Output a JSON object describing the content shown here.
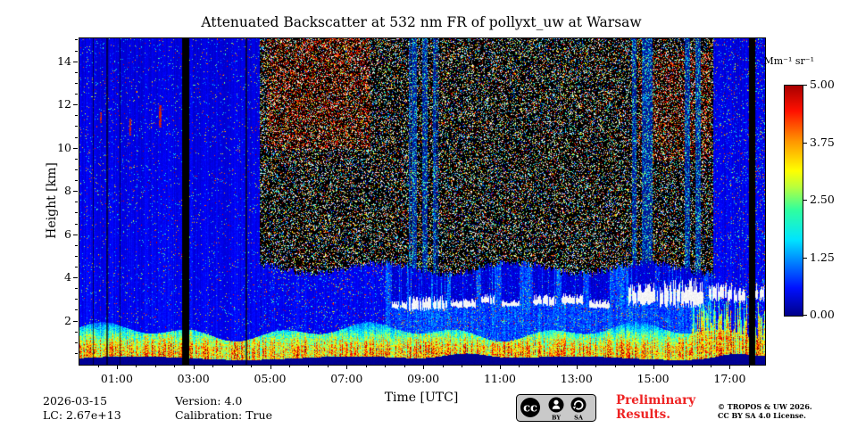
{
  "chart_data": {
    "type": "heatmap",
    "title": "Attenuated Backscatter at 532 nm FR of pollyxt_uw at Warsaw",
    "xlabel": "Time [UTC]",
    "ylabel": "Height [km]",
    "colorbar_label": "Mm⁻¹ sr⁻¹",
    "colormap": "jet",
    "value_range": [
      0,
      5
    ],
    "colorbar_ticks": [
      "5.00",
      "3.75",
      "2.50",
      "1.25",
      "0.00"
    ],
    "x_ticks": [
      "01:00",
      "03:00",
      "05:00",
      "07:00",
      "09:00",
      "11:00",
      "13:00",
      "15:00",
      "17:00"
    ],
    "x_tick_hours": [
      1,
      3,
      5,
      7,
      9,
      11,
      13,
      15,
      17
    ],
    "y_ticks": [
      "2",
      "4",
      "6",
      "8",
      "10",
      "12",
      "14"
    ],
    "y_tick_km": [
      2,
      4,
      6,
      8,
      10,
      12,
      14
    ],
    "x_range_hours": [
      0,
      17.9
    ],
    "y_range_km": [
      0,
      15.1
    ],
    "features": {
      "gaps": [
        [
          2.68,
          2.85
        ],
        [
          17.5,
          17.66
        ]
      ],
      "dark_columns": [
        0.35,
        0.72,
        1.05,
        4.35
      ],
      "red_dashes": [
        [
          1.32,
          10.6,
          11.4
        ],
        [
          2.1,
          11.0,
          12.0
        ],
        [
          0.55,
          11.2,
          11.7
        ]
      ],
      "solar_noise_region": {
        "t": [
          4.7,
          16.55
        ],
        "h_floor": 4.45
      },
      "turbid_field": {
        "t": [
          8.0,
          16.55
        ]
      },
      "red_haze": [
        [
          4.9,
          7.6,
          10.0,
          15.1,
          0.18
        ],
        [
          14.6,
          16.5,
          9.5,
          14.5,
          0.15
        ]
      ],
      "clouds": [
        [
          8.15,
          8.55,
          2.55,
          2.95
        ],
        [
          8.6,
          9.6,
          2.45,
          3.2
        ],
        [
          9.7,
          10.35,
          2.6,
          3.05
        ],
        [
          10.5,
          10.85,
          2.75,
          3.3
        ],
        [
          11.0,
          11.5,
          2.65,
          3.0
        ],
        [
          11.85,
          12.45,
          2.7,
          3.25
        ],
        [
          12.6,
          13.15,
          2.75,
          3.3
        ],
        [
          13.3,
          13.85,
          2.55,
          3.0
        ],
        [
          14.35,
          15.1,
          2.7,
          3.8
        ],
        [
          15.15,
          16.3,
          2.6,
          4.0
        ],
        [
          16.45,
          17.05,
          2.9,
          3.8
        ],
        [
          17.1,
          17.4,
          2.8,
          3.6
        ],
        [
          17.6,
          17.88,
          2.9,
          3.85
        ]
      ],
      "aerosol": {
        "peak_value": 3.3,
        "peak_height": 0.5,
        "sigma": 1.25
      },
      "plume_start": 16.0,
      "surface_band": 0.28
    }
  },
  "footer": {
    "date": "2026-03-15",
    "lc": "LC: 2.67e+13",
    "version": "Version: 4.0",
    "calibration": "Calibration: True",
    "preliminary_1": "Preliminary",
    "preliminary_2": "Results.",
    "copyright_1": "© TROPOS & UW 2026.",
    "copyright_2": "CC BY SA 4.0 License.",
    "badge": {
      "cc": "cc",
      "by": "BY",
      "sa": "SA"
    }
  }
}
